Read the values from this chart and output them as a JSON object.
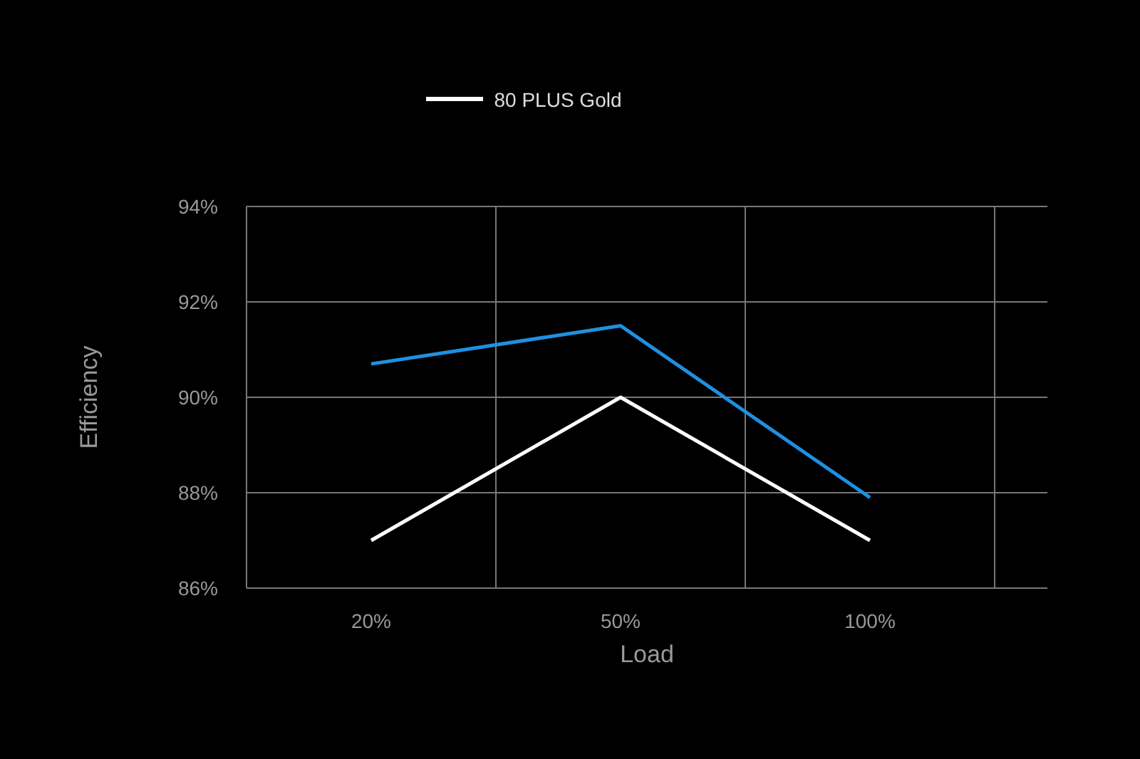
{
  "chart_data": {
    "type": "line",
    "xlabel": "Load",
    "ylabel": "Efficiency",
    "categories": [
      "20%",
      "50%",
      "100%"
    ],
    "series": [
      {
        "color": "#1e90e0",
        "values": [
          90.7,
          91.5,
          87.9
        ]
      },
      {
        "name": "80 PLUS Gold",
        "color": "#ffffff",
        "values": [
          87,
          90,
          87
        ]
      }
    ],
    "ylim": [
      86,
      94
    ],
    "yticks": [
      {
        "value": 86,
        "label": "86%"
      },
      {
        "value": 88,
        "label": "88%"
      },
      {
        "value": 90,
        "label": "90%"
      },
      {
        "value": 92,
        "label": "92%"
      },
      {
        "value": 94,
        "label": "94%"
      }
    ],
    "grid": true,
    "legend": "top",
    "marker": "none",
    "line_style": "solid"
  }
}
